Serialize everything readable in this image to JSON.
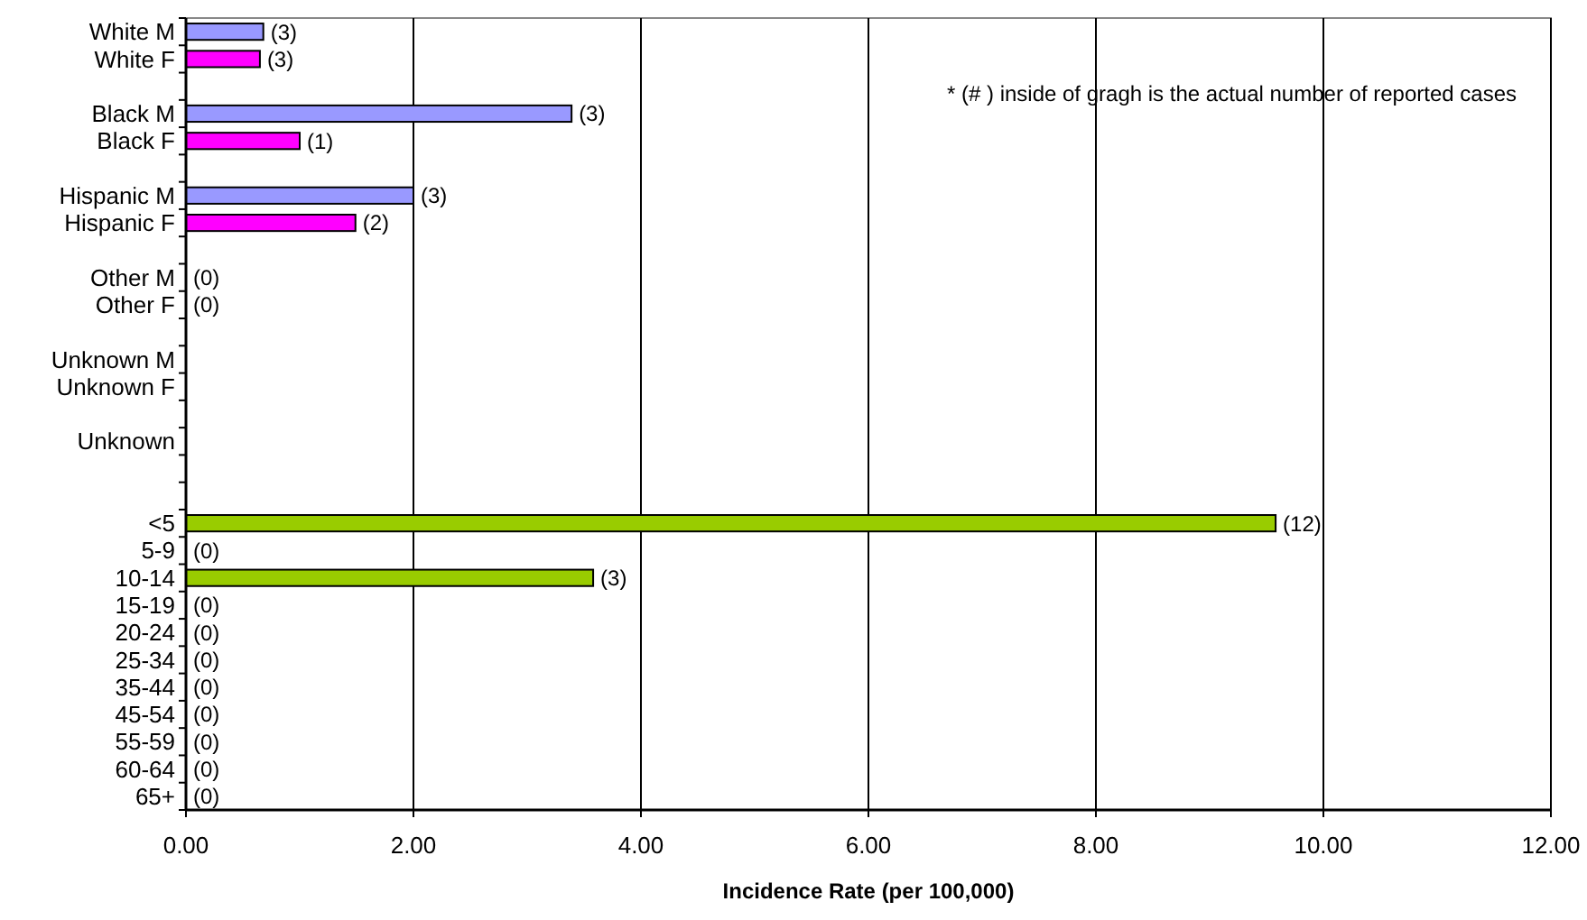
{
  "chart_data": {
    "type": "bar",
    "orientation": "horizontal",
    "xlabel": "Incidence Rate (per 100,000)",
    "categories": [
      "White M",
      "White F",
      null,
      "Black M",
      "Black F",
      null,
      "Hispanic M",
      "Hispanic F",
      null,
      "Other M",
      "Other F",
      null,
      "Unknown M",
      "Unknown F",
      null,
      "Unknown",
      null,
      null,
      "<5",
      "5-9",
      "10-14",
      "15-19",
      "20-24",
      "25-34",
      "35-44",
      "45-54",
      "55-59",
      "60-64",
      "65+"
    ],
    "values": [
      0.68,
      0.65,
      null,
      3.39,
      1.0,
      null,
      2.0,
      1.49,
      null,
      0,
      0,
      null,
      null,
      null,
      null,
      null,
      null,
      null,
      9.58,
      0,
      3.58,
      0,
      0,
      0,
      0,
      0,
      0,
      0,
      0
    ],
    "colors": [
      "#9999ff",
      "#ff00ff",
      null,
      "#9999ff",
      "#ff00ff",
      null,
      "#9999ff",
      "#ff00ff",
      null,
      "#9999ff",
      "#ff00ff",
      null,
      null,
      null,
      null,
      null,
      null,
      null,
      "#99cc00",
      "#99cc00",
      "#99cc00",
      "#99cc00",
      "#99cc00",
      "#99cc00",
      "#99cc00",
      "#99cc00",
      "#99cc00",
      "#99cc00",
      "#99cc00"
    ],
    "xlim": [
      0,
      12
    ],
    "xticks": [
      {
        "value": 0,
        "label": "0.00"
      },
      {
        "value": 2,
        "label": "2.00"
      },
      {
        "value": 4,
        "label": "4.00"
      },
      {
        "value": 6,
        "label": "6.00"
      },
      {
        "value": 8,
        "label": "8.00"
      },
      {
        "value": 10,
        "label": "10.00"
      },
      {
        "value": 12,
        "label": "12.00"
      }
    ],
    "grid": "x",
    "annotations": [
      "* (# ) inside of gragh is the actual number of reported cases",
      {
        "text": "(3)",
        "x": 0.68,
        "y": "White M"
      },
      {
        "text": "(3)",
        "x": 0.65,
        "y": "White F"
      },
      {
        "text": "(3)",
        "x": 3.39,
        "y": "Black M"
      },
      {
        "text": "(1)",
        "x": 1.0,
        "y": "Black F"
      },
      {
        "text": "(3)",
        "x": 2.0,
        "y": "Hispanic M"
      },
      {
        "text": "(2)",
        "x": 1.49,
        "y": "Hispanic F"
      },
      {
        "text": "(0)",
        "x": 0,
        "y": "Other M"
      },
      {
        "text": "(0)",
        "x": 0,
        "y": "Other F"
      },
      {
        "text": "(12)",
        "x": 9.58,
        "y": "<5"
      },
      {
        "text": "(0)",
        "x": 0,
        "y": "5-9"
      },
      {
        "text": "(3)",
        "x": 3.58,
        "y": "10-14"
      },
      {
        "text": "(0)",
        "x": 0,
        "y": "15-19"
      },
      {
        "text": "(0)",
        "x": 0,
        "y": "20-24"
      },
      {
        "text": "(0)",
        "x": 0,
        "y": "25-34"
      },
      {
        "text": "(0)",
        "x": 0,
        "y": "35-44"
      },
      {
        "text": "(0)",
        "x": 0,
        "y": "45-54"
      },
      {
        "text": "(0)",
        "x": 0,
        "y": "55-59"
      },
      {
        "text": "(0)",
        "x": 0,
        "y": "60-64"
      },
      {
        "text": "(0)",
        "x": 0,
        "y": "65+"
      }
    ]
  }
}
